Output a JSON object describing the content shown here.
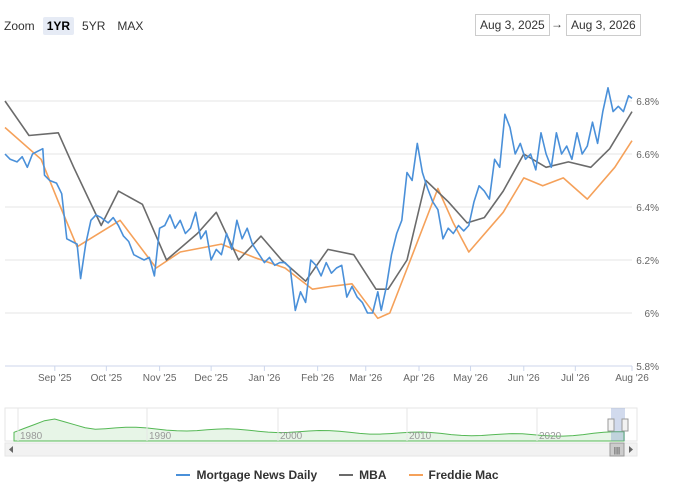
{
  "zoom": {
    "label": "Zoom",
    "buttons": [
      "1YR",
      "5YR",
      "MAX"
    ],
    "active": "1YR"
  },
  "range": {
    "from": "Aug 3, 2025",
    "arrow": "→",
    "to": "Aug 3, 2026"
  },
  "chart_data": {
    "type": "line",
    "x_tick_labels": [
      "Sep '25",
      "Oct '25",
      "Nov '25",
      "Dec '25",
      "Jan '26",
      "Feb '26",
      "Mar '26",
      "Apr '26",
      "May '26",
      "Jun '26",
      "Jul '26",
      "Aug '26"
    ],
    "y_tick_labels": [
      "5.8%",
      "6%",
      "6.2%",
      "6.4%",
      "6.6%",
      "6.8%"
    ],
    "ylim": [
      5.8,
      6.9
    ],
    "x_start": "2025-08-03",
    "x_end": "2026-08-03",
    "legend_position": "bottom",
    "series": [
      {
        "name": "Mortgage News Daily",
        "color": "#4a90d9",
        "points": [
          [
            "2025-08-03",
            6.6
          ],
          [
            "2025-08-06",
            6.58
          ],
          [
            "2025-08-10",
            6.57
          ],
          [
            "2025-08-13",
            6.59
          ],
          [
            "2025-08-16",
            6.55
          ],
          [
            "2025-08-19",
            6.6
          ],
          [
            "2025-08-22",
            6.61
          ],
          [
            "2025-08-25",
            6.62
          ],
          [
            "2025-08-26",
            6.52
          ],
          [
            "2025-08-29",
            6.5
          ],
          [
            "2025-09-02",
            6.49
          ],
          [
            "2025-09-05",
            6.45
          ],
          [
            "2025-09-08",
            6.28
          ],
          [
            "2025-09-11",
            6.27
          ],
          [
            "2025-09-14",
            6.26
          ],
          [
            "2025-09-16",
            6.13
          ],
          [
            "2025-09-19",
            6.26
          ],
          [
            "2025-09-22",
            6.35
          ],
          [
            "2025-09-25",
            6.37
          ],
          [
            "2025-09-28",
            6.36
          ],
          [
            "2025-10-02",
            6.34
          ],
          [
            "2025-10-05",
            6.36
          ],
          [
            "2025-10-08",
            6.33
          ],
          [
            "2025-10-11",
            6.29
          ],
          [
            "2025-10-14",
            6.27
          ],
          [
            "2025-10-17",
            6.22
          ],
          [
            "2025-10-20",
            6.21
          ],
          [
            "2025-10-23",
            6.2
          ],
          [
            "2025-10-26",
            6.21
          ],
          [
            "2025-10-29",
            6.14
          ],
          [
            "2025-11-01",
            6.32
          ],
          [
            "2025-11-04",
            6.33
          ],
          [
            "2025-11-07",
            6.37
          ],
          [
            "2025-11-10",
            6.32
          ],
          [
            "2025-11-13",
            6.35
          ],
          [
            "2025-11-16",
            6.3
          ],
          [
            "2025-11-19",
            6.32
          ],
          [
            "2025-11-22",
            6.38
          ],
          [
            "2025-11-25",
            6.28
          ],
          [
            "2025-11-28",
            6.31
          ],
          [
            "2025-12-01",
            6.2
          ],
          [
            "2025-12-04",
            6.24
          ],
          [
            "2025-12-07",
            6.22
          ],
          [
            "2025-12-10",
            6.3
          ],
          [
            "2025-12-13",
            6.24
          ],
          [
            "2025-12-16",
            6.35
          ],
          [
            "2025-12-19",
            6.28
          ],
          [
            "2025-12-22",
            6.32
          ],
          [
            "2025-12-25",
            6.26
          ],
          [
            "2025-12-28",
            6.23
          ],
          [
            "2026-01-01",
            6.19
          ],
          [
            "2026-01-04",
            6.21
          ],
          [
            "2026-01-07",
            6.18
          ],
          [
            "2026-01-10",
            6.19
          ],
          [
            "2026-01-13",
            6.19
          ],
          [
            "2026-01-16",
            6.17
          ],
          [
            "2026-01-19",
            6.01
          ],
          [
            "2026-01-22",
            6.08
          ],
          [
            "2026-01-25",
            6.04
          ],
          [
            "2026-01-28",
            6.2
          ],
          [
            "2026-01-31",
            6.18
          ],
          [
            "2026-02-03",
            6.14
          ],
          [
            "2026-02-06",
            6.19
          ],
          [
            "2026-02-09",
            6.15
          ],
          [
            "2026-02-12",
            6.17
          ],
          [
            "2026-02-15",
            6.18
          ],
          [
            "2026-02-18",
            6.06
          ],
          [
            "2026-02-21",
            6.1
          ],
          [
            "2026-02-24",
            6.06
          ],
          [
            "2026-02-27",
            6.04
          ],
          [
            "2026-03-02",
            6.0
          ],
          [
            "2026-03-05",
            6.0
          ],
          [
            "2026-03-08",
            6.08
          ],
          [
            "2026-03-10",
            6.01
          ],
          [
            "2026-03-13",
            6.1
          ],
          [
            "2026-03-16",
            6.22
          ],
          [
            "2026-03-19",
            6.3
          ],
          [
            "2026-03-22",
            6.35
          ],
          [
            "2026-03-25",
            6.53
          ],
          [
            "2026-03-28",
            6.5
          ],
          [
            "2026-03-31",
            6.64
          ],
          [
            "2026-04-03",
            6.53
          ],
          [
            "2026-04-06",
            6.47
          ],
          [
            "2026-04-09",
            6.42
          ],
          [
            "2026-04-12",
            6.39
          ],
          [
            "2026-04-15",
            6.28
          ],
          [
            "2026-04-18",
            6.32
          ],
          [
            "2026-04-21",
            6.3
          ],
          [
            "2026-04-24",
            6.33
          ],
          [
            "2026-04-27",
            6.31
          ],
          [
            "2026-04-30",
            6.33
          ],
          [
            "2026-05-03",
            6.42
          ],
          [
            "2026-05-06",
            6.48
          ],
          [
            "2026-05-09",
            6.46
          ],
          [
            "2026-05-12",
            6.43
          ],
          [
            "2026-05-15",
            6.58
          ],
          [
            "2026-05-18",
            6.55
          ],
          [
            "2026-05-21",
            6.75
          ],
          [
            "2026-05-24",
            6.7
          ],
          [
            "2026-05-27",
            6.6
          ],
          [
            "2026-05-30",
            6.64
          ],
          [
            "2026-06-02",
            6.58
          ],
          [
            "2026-06-05",
            6.6
          ],
          [
            "2026-06-08",
            6.54
          ],
          [
            "2026-06-11",
            6.68
          ],
          [
            "2026-06-14",
            6.6
          ],
          [
            "2026-06-17",
            6.55
          ],
          [
            "2026-06-20",
            6.68
          ],
          [
            "2026-06-23",
            6.6
          ],
          [
            "2026-06-26",
            6.63
          ],
          [
            "2026-06-29",
            6.58
          ],
          [
            "2026-07-02",
            6.68
          ],
          [
            "2026-07-05",
            6.6
          ],
          [
            "2026-07-08",
            6.63
          ],
          [
            "2026-07-11",
            6.72
          ],
          [
            "2026-07-14",
            6.64
          ],
          [
            "2026-07-17",
            6.76
          ],
          [
            "2026-07-20",
            6.85
          ],
          [
            "2026-07-23",
            6.76
          ],
          [
            "2026-07-26",
            6.78
          ],
          [
            "2026-07-29",
            6.76
          ],
          [
            "2026-08-01",
            6.82
          ],
          [
            "2026-08-03",
            6.81
          ]
        ]
      },
      {
        "name": "MBA",
        "color": "#6b6b6b",
        "points": [
          [
            "2025-08-03",
            6.8
          ],
          [
            "2025-08-17",
            6.67
          ],
          [
            "2025-09-03",
            6.68
          ],
          [
            "2025-09-12",
            6.55
          ],
          [
            "2025-09-28",
            6.33
          ],
          [
            "2025-10-08",
            6.46
          ],
          [
            "2025-10-22",
            6.41
          ],
          [
            "2025-11-05",
            6.2
          ],
          [
            "2025-11-23",
            6.3
          ],
          [
            "2025-12-04",
            6.38
          ],
          [
            "2025-12-17",
            6.2
          ],
          [
            "2025-12-30",
            6.29
          ],
          [
            "2026-01-11",
            6.2
          ],
          [
            "2026-01-25",
            6.12
          ],
          [
            "2026-02-07",
            6.24
          ],
          [
            "2026-02-22",
            6.22
          ],
          [
            "2026-03-07",
            6.09
          ],
          [
            "2026-03-14",
            6.09
          ],
          [
            "2026-03-25",
            6.2
          ],
          [
            "2026-04-05",
            6.5
          ],
          [
            "2026-04-18",
            6.42
          ],
          [
            "2026-04-29",
            6.34
          ],
          [
            "2026-05-09",
            6.36
          ],
          [
            "2026-05-20",
            6.46
          ],
          [
            "2026-06-01",
            6.6
          ],
          [
            "2026-06-14",
            6.55
          ],
          [
            "2026-06-27",
            6.57
          ],
          [
            "2026-07-10",
            6.55
          ],
          [
            "2026-07-21",
            6.62
          ],
          [
            "2026-08-03",
            6.76
          ]
        ]
      },
      {
        "name": "Freddie Mac",
        "color": "#f5a15a",
        "points": [
          [
            "2025-08-03",
            6.7
          ],
          [
            "2025-08-24",
            6.58
          ],
          [
            "2025-09-03",
            6.42
          ],
          [
            "2025-09-14",
            6.25
          ],
          [
            "2025-10-09",
            6.35
          ],
          [
            "2025-10-30",
            6.17
          ],
          [
            "2025-11-13",
            6.23
          ],
          [
            "2025-12-07",
            6.26
          ],
          [
            "2025-12-26",
            6.21
          ],
          [
            "2026-01-13",
            6.17
          ],
          [
            "2026-01-29",
            6.09
          ],
          [
            "2026-02-08",
            6.1
          ],
          [
            "2026-02-21",
            6.11
          ],
          [
            "2026-03-08",
            5.98
          ],
          [
            "2026-03-15",
            6.0
          ],
          [
            "2026-03-27",
            6.2
          ],
          [
            "2026-04-12",
            6.47
          ],
          [
            "2026-04-21",
            6.34
          ],
          [
            "2026-04-30",
            6.23
          ],
          [
            "2026-05-20",
            6.38
          ],
          [
            "2026-06-01",
            6.51
          ],
          [
            "2026-06-12",
            6.48
          ],
          [
            "2026-06-24",
            6.51
          ],
          [
            "2026-07-08",
            6.43
          ],
          [
            "2026-07-24",
            6.55
          ],
          [
            "2026-08-03",
            6.65
          ]
        ]
      }
    ]
  },
  "navigator": {
    "year_labels": [
      "1980",
      "1990",
      "2000",
      "2010",
      "2020"
    ],
    "scroll_grip": "|||"
  }
}
